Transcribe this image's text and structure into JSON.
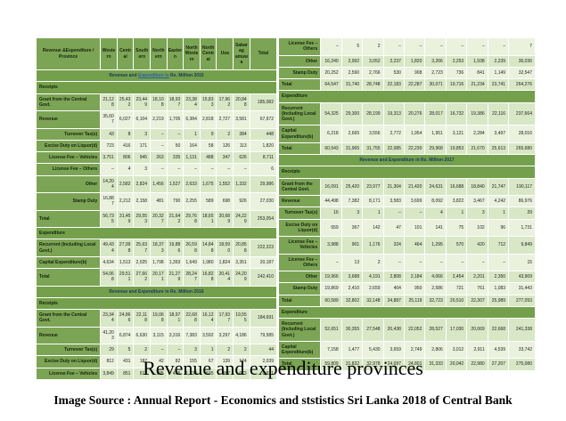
{
  "page": {
    "title": "Revenue and expenditure provinces",
    "caption": "Image Source : Annual Report - Economics and ststistics Sri Lanka 2018 of Central Bank"
  },
  "colors": {
    "header_green": "#7CA455",
    "band_green": "#74A04C",
    "row_light": "#D8E7C5",
    "row_lighter": "#EAF2DE",
    "band_text": "#17365D",
    "link_blue": "#2A5DB0"
  },
  "table": {
    "corner_label": "Revenue &Expenditure / Province",
    "columns": [
      "Western",
      "Central",
      "Southern",
      "Northern",
      "Eastern",
      "North Western",
      "North Central",
      "Uva",
      "Sabarag amuwa",
      "Total"
    ],
    "left_rows": [
      {
        "type": "band",
        "pre": "Revenue and ",
        "link": "Expenditure in",
        "post": " Rs. Million 2015"
      },
      {
        "type": "section",
        "label": "Receipts"
      },
      {
        "type": "data",
        "label": "Grant from the Central Govt.",
        "sub": false,
        "shade": "a",
        "values": [
          "21,128",
          "25,432",
          "23,449",
          "18,108",
          "18,937",
          "23,384",
          "15,833",
          "17,962",
          "20,848",
          "185,082"
        ]
      },
      {
        "type": "data",
        "label": "Revenue",
        "sub": false,
        "shade": "b",
        "values": [
          "35,607",
          "6,027",
          "6,104",
          "2,219",
          "1,705",
          "6,384",
          "2,818",
          "2,727",
          "3,581",
          "67,972"
        ]
      },
      {
        "type": "data",
        "label": "Turnover Tax(s)",
        "sub": true,
        "shade": "a",
        "values": [
          "43",
          "8",
          "3",
          "–",
          "–",
          "1",
          "9",
          "2",
          "384",
          "448"
        ]
      },
      {
        "type": "data",
        "label": "Excise Duty on Liquor(d)",
        "sub": true,
        "shade": "b",
        "values": [
          "723",
          "416",
          "171",
          "–",
          "50",
          "164",
          "58",
          "126",
          "113",
          "1,820"
        ]
      },
      {
        "type": "data",
        "label": "License Fee – Vehicles",
        "sub": true,
        "shade": "a",
        "values": [
          "3,751",
          "806",
          "945",
          "263",
          "335",
          "1,131",
          "488",
          "347",
          "626",
          "8,711"
        ]
      },
      {
        "type": "data",
        "label": "License Fee – Others",
        "sub": true,
        "shade": "b",
        "values": [
          "–",
          "4",
          "3",
          "–",
          "–",
          "–",
          "–",
          "–",
          "–",
          "6"
        ]
      },
      {
        "type": "data",
        "label": "Other",
        "sub": true,
        "shade": "a",
        "values": [
          "14,204",
          "2,582",
          "2,824",
          "1,456",
          "1,527",
          "2,633",
          "1,675",
          "1,552",
          "1,332",
          "29,986"
        ]
      },
      {
        "type": "data",
        "label": "Stamp Duty",
        "sub": true,
        "shade": "b",
        "values": [
          "16,887",
          "2,212",
          "2,158",
          "481",
          "790",
          "2,255",
          "589",
          "698",
          "926",
          "27,030"
        ]
      },
      {
        "type": "data",
        "label": "Total",
        "sub": false,
        "shade": "a",
        "values": [
          "56,735",
          "31,459",
          "29,553",
          "20,327",
          "21,642",
          "29,768",
          "18,651",
          "20,689",
          "24,229",
          "253,054"
        ]
      },
      {
        "type": "section",
        "label": "Expenditure"
      },
      {
        "type": "data",
        "label": "Recurrent (Including Local Govt.)",
        "sub": false,
        "shade": "a",
        "values": [
          "49,434",
          "27,998",
          "25,637",
          "18,373",
          "19,886",
          "26,598",
          "14,848",
          "18,590",
          "20,858",
          "222,223"
        ]
      },
      {
        "type": "data",
        "label": "Capital Expenditure(b)",
        "sub": false,
        "shade": "b",
        "values": [
          "4,634",
          "1,513",
          "2,025",
          "1,798",
          "1,393",
          "1,649",
          "1,980",
          "1,824",
          "3,351",
          "20,187"
        ]
      },
      {
        "type": "data",
        "label": "Total",
        "sub": false,
        "shade": "a",
        "values": [
          "54,068",
          "29,511",
          "27,662",
          "20,171",
          "21,279",
          "28,247",
          "16,828",
          "20,414",
          "24,209",
          "242,410"
        ]
      },
      {
        "type": "band",
        "pre": "Revenue and Expenditure in Rs. Million 2016",
        "link": "",
        "post": ""
      },
      {
        "type": "section",
        "label": "Receipts"
      },
      {
        "type": "data",
        "label": "Grant from the Central Govt.",
        "sub": false,
        "shade": "a",
        "values": [
          "23,344",
          "24,866",
          "22,118",
          "19,068",
          "18,971",
          "22,688",
          "16,124",
          "17,937",
          "19,555",
          "184,691"
        ]
      },
      {
        "type": "data",
        "label": "Revenue",
        "sub": false,
        "shade": "b",
        "values": [
          "41,203",
          "6,874",
          "6,630",
          "3,115",
          "3,316",
          "7,383",
          "3,592",
          "3,297",
          "4,186",
          "79,585"
        ]
      },
      {
        "type": "data",
        "label": "Turnover Tax(s)",
        "sub": true,
        "shade": "a",
        "values": [
          "29",
          "5",
          "2",
          "–",
          "–",
          "3",
          "1",
          "2",
          "2",
          "44"
        ]
      },
      {
        "type": "data",
        "label": "Excise Duty on Liquor(d)",
        "sub": true,
        "shade": "b",
        "values": [
          "812",
          "431",
          "187",
          "42",
          "82",
          "155",
          "67",
          "139",
          "124",
          "2,039"
        ]
      },
      {
        "type": "data",
        "label": "License Fee – Vehicles",
        "sub": true,
        "shade": "a",
        "values": [
          "3,849",
          "851",
          "612",
          "305",
          "455",
          "1,234",
          "535",
          "387",
          "673",
          "8,921"
        ]
      }
    ],
    "right_rows": [
      {
        "type": "data",
        "label": "License Fee – Others",
        "sub": true,
        "shade": "b",
        "values": [
          "–",
          "5",
          "2",
          "–",
          "–",
          "–",
          "–",
          "–",
          "–",
          "7"
        ]
      },
      {
        "type": "data",
        "label": "Other",
        "sub": true,
        "shade": "a",
        "values": [
          "16,240",
          "2,992",
          "3,052",
          "2,237",
          "1,820",
          "3,266",
          "2,253",
          "1,938",
          "2,239",
          "36,036"
        ]
      },
      {
        "type": "data",
        "label": "Stamp Duty",
        "sub": true,
        "shade": "b",
        "values": [
          "20,252",
          "2,590",
          "2,766",
          "530",
          "908",
          "2,723",
          "736",
          "841",
          "1,149",
          "32,547"
        ]
      },
      {
        "type": "data",
        "label": "Total",
        "sub": false,
        "shade": "a",
        "values": [
          "64,547",
          "31,740",
          "28,748",
          "22,183",
          "22,287",
          "30,071",
          "19,716",
          "21,234",
          "23,741",
          "264,276"
        ]
      },
      {
        "type": "section",
        "label": "Expenditure"
      },
      {
        "type": "data",
        "label": "Recurrent (Including Local Govt.)",
        "sub": false,
        "shade": "a",
        "values": [
          "54,325",
          "29,300",
          "28,199",
          "19,313",
          "20,276",
          "28,017",
          "16,732",
          "19,386",
          "22,116",
          "237,664"
        ]
      },
      {
        "type": "data",
        "label": "Capital Expenditure(b)",
        "sub": false,
        "shade": "b",
        "values": [
          "6,218",
          "2,665",
          "3,556",
          "2,772",
          "1,954",
          "1,951",
          "3,121",
          "2,284",
          "3,497",
          "28,016"
        ]
      },
      {
        "type": "data",
        "label": "Total",
        "sub": false,
        "shade": "a",
        "values": [
          "60,543",
          "31,965",
          "31,755",
          "22,085",
          "22,230",
          "29,968",
          "19,853",
          "21,670",
          "25,613",
          "265,680"
        ]
      },
      {
        "type": "band",
        "pre": "Revenue and Expenditure in Rs. Million 2017",
        "link": "",
        "post": ""
      },
      {
        "type": "section",
        "label": "Receipts"
      },
      {
        "type": "data",
        "label": "Grant from the Central Govt.",
        "sub": false,
        "shade": "a",
        "values": [
          "16,091",
          "25,420",
          "23,977",
          "21,304",
          "21,420",
          "24,631",
          "16,688",
          "18,840",
          "21,747",
          "190,117"
        ]
      },
      {
        "type": "data",
        "label": "Revenue",
        "sub": false,
        "shade": "b",
        "values": [
          "44,498",
          "7,382",
          "8,171",
          "3,583",
          "3,699",
          "8,092",
          "3,822",
          "3,467",
          "4,242",
          "86,976"
        ]
      },
      {
        "type": "data",
        "label": "Turnover Tax(s)",
        "sub": true,
        "shade": "a",
        "values": [
          "16",
          "3",
          "1",
          "–",
          "–",
          "4",
          "1",
          "3",
          "1",
          "29"
        ]
      },
      {
        "type": "data",
        "label": "Excise Duty on Liquor(d)",
        "sub": true,
        "shade": "b",
        "values": [
          "659",
          "367",
          "142",
          "47",
          "101",
          "141",
          "75",
          "102",
          "96",
          "1,731"
        ]
      },
      {
        "type": "data",
        "label": "License Fee – Vehicles",
        "sub": true,
        "shade": "a",
        "values": [
          "3,988",
          "901",
          "1,176",
          "324",
          "464",
          "1,295",
          "570",
          "420",
          "712",
          "9,849"
        ]
      },
      {
        "type": "data",
        "label": "License Fee – Others",
        "sub": true,
        "shade": "b",
        "values": [
          "–",
          "13",
          "2",
          "–",
          "–",
          "–",
          "–",
          "–",
          "–",
          "15"
        ]
      },
      {
        "type": "data",
        "label": "Other",
        "sub": true,
        "shade": "a",
        "values": [
          "19,966",
          "3,688",
          "4,191",
          "2,808",
          "2,184",
          "4,066",
          "2,454",
          "2,201",
          "2,350",
          "43,909"
        ]
      },
      {
        "type": "data",
        "label": "Stamp Duty",
        "sub": true,
        "shade": "b",
        "values": [
          "19,869",
          "2,410",
          "2,659",
          "404",
          "950",
          "2,586",
          "721",
          "761",
          "1,083",
          "31,443"
        ]
      },
      {
        "type": "data",
        "label": "Total",
        "sub": false,
        "shade": "a",
        "values": [
          "60,589",
          "32,802",
          "32,148",
          "24,887",
          "25,119",
          "32,723",
          "20,510",
          "22,307",
          "25,989",
          "277,093"
        ]
      },
      {
        "type": "section",
        "label": "Expenditure"
      },
      {
        "type": "data",
        "label": "Recurrent (Including Local Govt.)",
        "sub": false,
        "shade": "a",
        "values": [
          "52,651",
          "30,355",
          "27,548",
          "20,438",
          "22,052",
          "28,527",
          "17,030",
          "20,069",
          "22,668",
          "241,338"
        ]
      },
      {
        "type": "data",
        "label": "Capital Expenditure(b)",
        "sub": false,
        "shade": "b",
        "values": [
          "7,158",
          "1,477",
          "5,430",
          "3,659",
          "2,749",
          "2,806",
          "3,012",
          "2,911",
          "4,539",
          "33,742"
        ]
      },
      {
        "type": "data",
        "label": "Total",
        "sub": false,
        "shade": "a",
        "values": [
          "59,809",
          "31,832",
          "32,978",
          "24,097",
          "24,801",
          "31,333",
          "20,042",
          "22,980",
          "27,207",
          "275,080"
        ]
      }
    ]
  }
}
